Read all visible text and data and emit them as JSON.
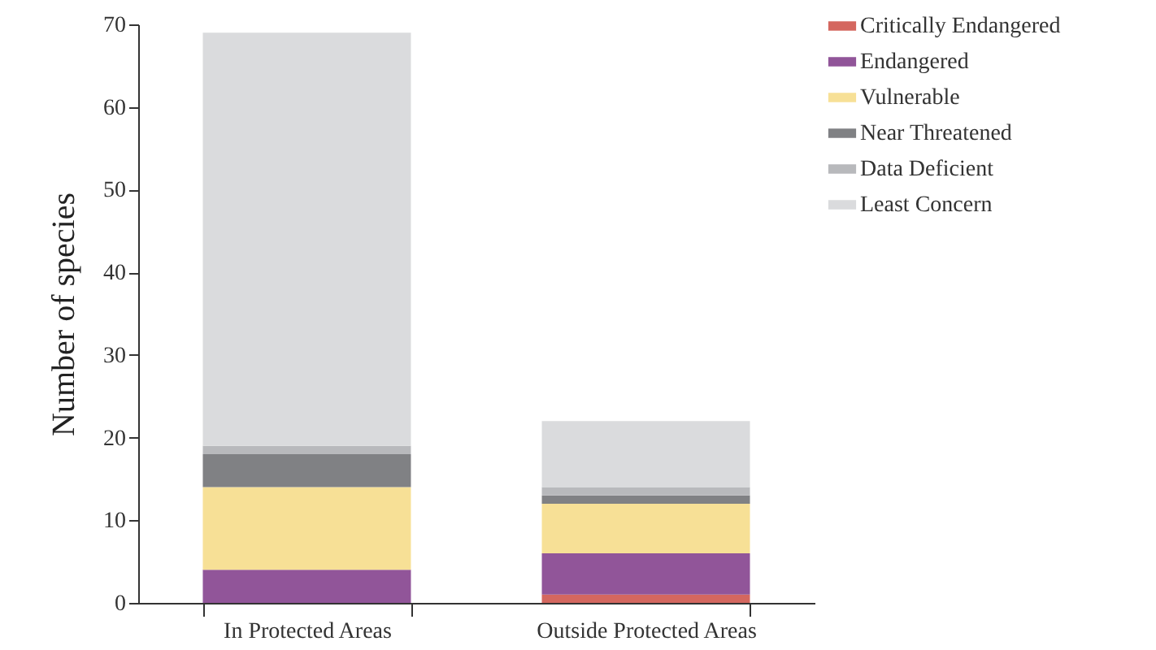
{
  "chart_data": {
    "type": "bar",
    "stacked": true,
    "ylabel": "Number of species",
    "categories": [
      "In Protected Areas",
      "Outside Protected Areas"
    ],
    "series": [
      {
        "name": "Critically Endangered",
        "color": "#d4675f",
        "values": [
          0,
          1
        ]
      },
      {
        "name": "Endangered",
        "color": "#915599",
        "values": [
          4,
          5
        ]
      },
      {
        "name": "Vulnerable",
        "color": "#f7e096",
        "values": [
          10,
          6
        ]
      },
      {
        "name": "Near Threatened",
        "color": "#808184",
        "values": [
          4,
          1
        ]
      },
      {
        "name": "Data Deficient",
        "color": "#b8b9bc",
        "values": [
          1,
          1
        ]
      },
      {
        "name": "Least Concern",
        "color": "#dadbdd",
        "values": [
          50,
          8
        ]
      }
    ],
    "ylim": [
      0,
      70
    ],
    "yticks": [
      0,
      10,
      20,
      30,
      40,
      50,
      60,
      70
    ],
    "grid": false,
    "legend": "top right"
  }
}
